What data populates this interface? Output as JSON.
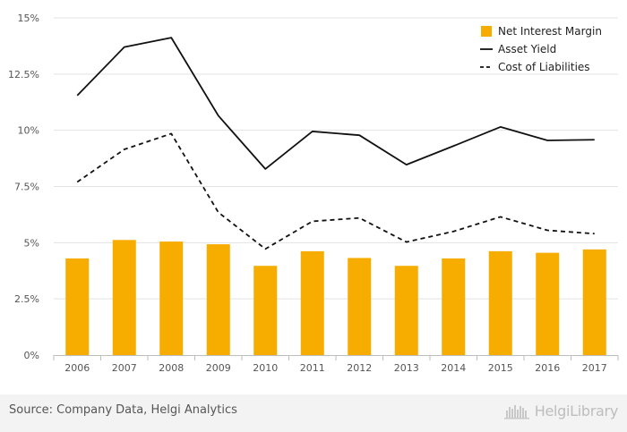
{
  "chart_data": {
    "type": "bar",
    "categories": [
      "2006",
      "2007",
      "2008",
      "2009",
      "2010",
      "2011",
      "2012",
      "2013",
      "2014",
      "2015",
      "2016",
      "2017"
    ],
    "yticks": [
      "0%",
      "2.5%",
      "5%",
      "7.5%",
      "10%",
      "12.5%",
      "15%"
    ],
    "ylim": [
      0,
      15
    ],
    "grid": true,
    "legend_position": "top-right",
    "series": [
      {
        "name": "Net Interest Margin",
        "type": "bar",
        "color": "#f7ac00",
        "values": [
          4.3,
          5.12,
          5.05,
          4.93,
          3.97,
          4.62,
          4.32,
          3.97,
          4.3,
          4.62,
          4.55,
          4.7
        ]
      },
      {
        "name": "Asset Yield",
        "type": "line",
        "style": "solid",
        "color": "#111111",
        "values": [
          11.55,
          13.7,
          14.12,
          10.65,
          8.28,
          9.95,
          9.78,
          8.47,
          9.3,
          10.15,
          9.55,
          9.58
        ]
      },
      {
        "name": "Cost of Liabilities",
        "type": "line",
        "style": "dashed",
        "color": "#111111",
        "values": [
          7.7,
          9.15,
          9.85,
          6.35,
          4.72,
          5.95,
          6.1,
          5.03,
          5.5,
          6.15,
          5.55,
          5.4
        ]
      }
    ]
  },
  "footer": {
    "source": "Source: Company Data, Helgi Analytics",
    "logo_text": "HelgiLibrary"
  }
}
